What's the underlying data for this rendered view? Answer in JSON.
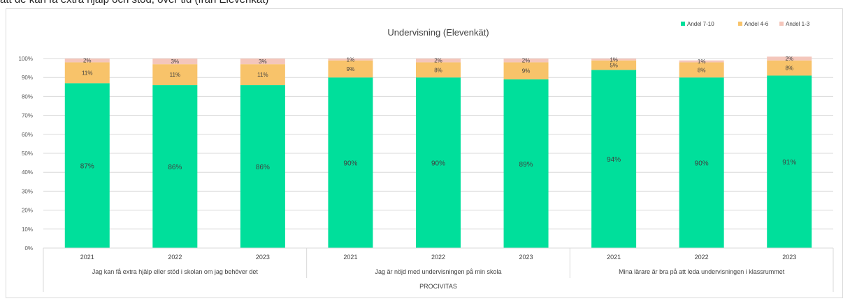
{
  "caption": "att de kan få extra hjälp och stöd, över tid (från Elevenkät)",
  "chart_data": {
    "type": "bar",
    "stacked": true,
    "title": "Undervisning (Elevenkät)",
    "ylim": [
      0,
      100
    ],
    "yticks": [
      "0%",
      "10%",
      "20%",
      "30%",
      "40%",
      "50%",
      "60%",
      "70%",
      "80%",
      "90%",
      "100%"
    ],
    "grid": true,
    "legend_position": "top-right",
    "categories": [
      "2021",
      "2022",
      "2023",
      "2021",
      "2022",
      "2023",
      "2021",
      "2022",
      "2023"
    ],
    "groups": [
      {
        "label": "Jag kan få extra hjälp eller stöd i skolan om jag behöver det",
        "span": [
          0,
          2
        ]
      },
      {
        "label": "Jag är nöjd med undervisningen på min skola",
        "span": [
          3,
          5
        ]
      },
      {
        "label": "Mina lärare är bra på att leda undervisningen i klassrummet",
        "span": [
          6,
          8
        ]
      }
    ],
    "outer_label": "PROCIVITAS",
    "series": [
      {
        "name": "Andel 7-10",
        "color": "#00df9b",
        "values": [
          87,
          86,
          86,
          90,
          90,
          89,
          94,
          90,
          91
        ],
        "labels": [
          "87%",
          "86%",
          "86%",
          "90%",
          "90%",
          "89%",
          "94%",
          "90%",
          "91%"
        ]
      },
      {
        "name": "Andel 4-6",
        "color": "#f8c36a",
        "values": [
          11,
          11,
          11,
          9,
          8,
          9,
          5,
          8,
          8
        ],
        "labels": [
          "11%",
          "11%",
          "11%",
          "9%",
          "8%",
          "9%",
          "5%",
          "8%",
          "8%"
        ]
      },
      {
        "name": "Andel 1-3",
        "color": "#f4c6bb",
        "values": [
          2,
          3,
          3,
          1,
          2,
          2,
          1,
          1,
          2
        ],
        "labels": [
          "2%",
          "3%",
          "3%",
          "1%",
          "2%",
          "2%",
          "1%",
          "1%",
          "2%"
        ]
      }
    ]
  }
}
